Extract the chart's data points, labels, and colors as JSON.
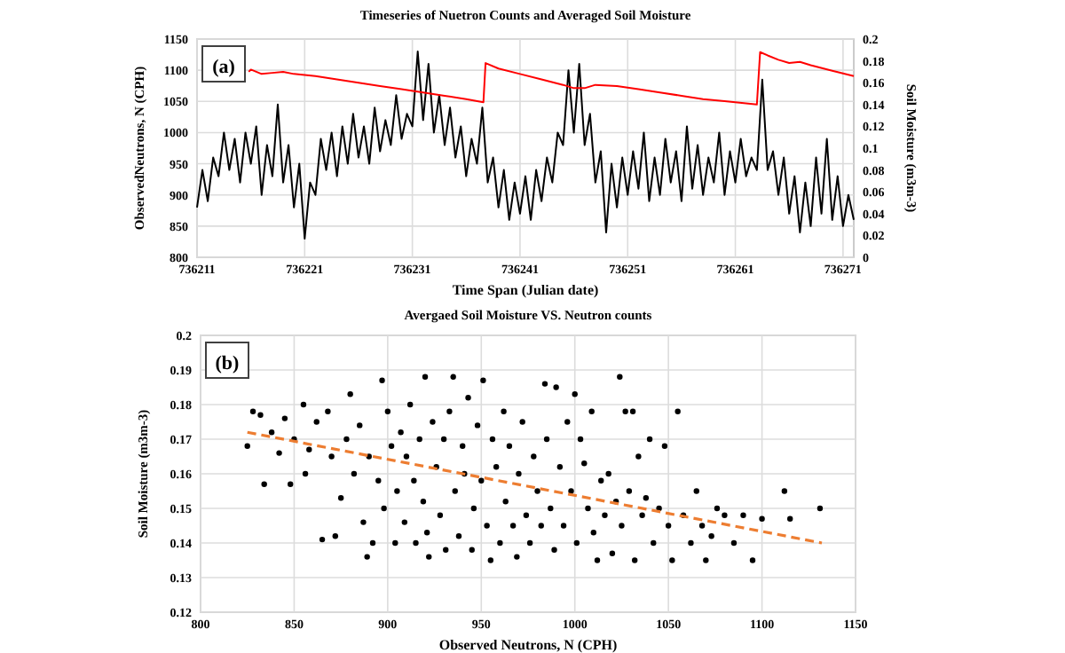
{
  "chart_data": [
    {
      "type": "line",
      "title": "Timeseries of Nuetron Counts and Averaged Soil Moisture",
      "xlabel": "Time Span (Julian date)",
      "ylabel": "ObservedNeutrons, N (CPH)",
      "y2label": "Soil Moisture (m3m-3)",
      "annotations": [
        "(a)"
      ],
      "grid": true,
      "xlim": [
        736211,
        736272
      ],
      "xticks": [
        736211,
        736221,
        736231,
        736241,
        736251,
        736261,
        736271
      ],
      "ylim": [
        800,
        1150
      ],
      "yticks": [
        800,
        850,
        900,
        950,
        1000,
        1050,
        1100,
        1150
      ],
      "y2lim": [
        0,
        0.2
      ],
      "y2ticks": [
        0,
        0.02,
        0.04,
        0.06,
        0.08,
        0.1,
        0.12,
        0.14,
        0.16,
        0.18,
        0.2
      ],
      "series": [
        {
          "color": "#000000",
          "x": [
            736211,
            736211.5,
            736212,
            736212.5,
            736213,
            736213.5,
            736214,
            736214.5,
            736215,
            736215.5,
            736216,
            736216.5,
            736217,
            736217.5,
            736218,
            736218.5,
            736219,
            736219.5,
            736220,
            736220.5,
            736221,
            736221.5,
            736222,
            736222.5,
            736223,
            736223.5,
            736224,
            736224.5,
            736225,
            736225.5,
            736226,
            736226.5,
            736227,
            736227.5,
            736228,
            736228.5,
            736229,
            736229.5,
            736230,
            736230.5,
            736231,
            736231.5,
            736232,
            736232.5,
            736233,
            736233.5,
            736234,
            736234.5,
            736235,
            736235.5,
            736236,
            736236.5,
            736237,
            736237.5,
            736238,
            736238.5,
            736239,
            736239.5,
            736240,
            736240.5,
            736241,
            736241.5,
            736242,
            736242.5,
            736243,
            736243.5,
            736244,
            736244.5,
            736245,
            736245.5,
            736246,
            736246.5,
            736247,
            736247.5,
            736248,
            736248.5,
            736249,
            736249.5,
            736250,
            736250.5,
            736251,
            736251.5,
            736252,
            736252.5,
            736253,
            736253.5,
            736254,
            736254.5,
            736255,
            736255.5,
            736256,
            736256.5,
            736257,
            736257.5,
            736258,
            736258.5,
            736259,
            736259.5,
            736260,
            736260.5,
            736261,
            736261.5,
            736262,
            736262.5,
            736263,
            736263.5,
            736264,
            736264.5,
            736265,
            736265.5,
            736266,
            736266.5,
            736267,
            736267.5,
            736268,
            736268.5,
            736269,
            736269.5,
            736270,
            736270.5,
            736271,
            736271.5,
            736272
          ],
          "values": [
            880,
            940,
            890,
            960,
            930,
            1000,
            940,
            990,
            920,
            1000,
            950,
            1010,
            900,
            980,
            930,
            1045,
            920,
            980,
            880,
            950,
            830,
            920,
            900,
            990,
            940,
            1000,
            930,
            1010,
            950,
            1030,
            960,
            1010,
            950,
            1040,
            970,
            1020,
            980,
            1060,
            990,
            1030,
            1010,
            1130,
            1020,
            1110,
            1000,
            1060,
            980,
            1040,
            960,
            1010,
            930,
            990,
            950,
            1040,
            920,
            960,
            880,
            940,
            860,
            920,
            870,
            930,
            860,
            940,
            890,
            960,
            920,
            1000,
            980,
            1100,
            1000,
            1110,
            980,
            1030,
            920,
            970,
            840,
            950,
            880,
            960,
            900,
            970,
            910,
            1000,
            890,
            960,
            900,
            990,
            920,
            970,
            890,
            1010,
            910,
            980,
            900,
            960,
            920,
            1000,
            900,
            970,
            920,
            990,
            930,
            960,
            940,
            1085,
            940,
            970,
            900,
            960,
            870,
            930,
            840,
            920,
            850,
            960,
            870,
            990,
            860,
            930,
            850,
            900,
            860
          ]
        },
        {
          "color": "#ff0000",
          "axis": "y2",
          "x": [
            736215.8,
            736216,
            736217,
            736218,
            736219,
            736220,
            736222,
            736224,
            736226,
            736228,
            736230,
            736232,
            736234,
            736236,
            736237.6,
            736237.8,
            736239,
            736241,
            736243,
            736245,
            736246,
            736247,
            736248,
            736250,
            736252,
            736254,
            736256,
            736258,
            736260,
            736262,
            736263,
            736263.3,
            736264,
            736265,
            736266,
            736267,
            736268,
            736270,
            736272
          ],
          "values": [
            0.17,
            0.172,
            0.168,
            0.169,
            0.17,
            0.168,
            0.166,
            0.163,
            0.16,
            0.157,
            0.154,
            0.151,
            0.148,
            0.145,
            0.142,
            0.178,
            0.173,
            0.168,
            0.163,
            0.158,
            0.155,
            0.155,
            0.158,
            0.157,
            0.154,
            0.151,
            0.148,
            0.145,
            0.143,
            0.141,
            0.14,
            0.188,
            0.185,
            0.181,
            0.178,
            0.179,
            0.176,
            0.171,
            0.166
          ]
        }
      ]
    },
    {
      "type": "scatter",
      "title": "Avergaed Soil Moisture VS. Neutron counts",
      "xlabel": "Observed Neutrons, N (CPH)",
      "ylabel": "Soil Moisture (m3m-3)",
      "annotations": [
        "(b)"
      ],
      "grid": true,
      "xlim": [
        800,
        1150
      ],
      "xticks": [
        800,
        850,
        900,
        950,
        1000,
        1050,
        1100,
        1150
      ],
      "ylim": [
        0.12,
        0.2
      ],
      "yticks": [
        0.12,
        0.13,
        0.14,
        0.15,
        0.16,
        0.17,
        0.18,
        0.19,
        0.2
      ],
      "series": [
        {
          "color": "#000000",
          "marker": "circle",
          "x": [
            825,
            828,
            832,
            834,
            838,
            842,
            845,
            848,
            850,
            855,
            856,
            858,
            862,
            865,
            868,
            870,
            872,
            875,
            878,
            880,
            882,
            885,
            887,
            889,
            890,
            892,
            895,
            897,
            898,
            900,
            902,
            904,
            905,
            907,
            909,
            910,
            912,
            914,
            915,
            917,
            919,
            920,
            921,
            922,
            924,
            926,
            928,
            930,
            931,
            933,
            935,
            936,
            938,
            940,
            941,
            943,
            945,
            946,
            948,
            950,
            951,
            953,
            955,
            956,
            958,
            960,
            962,
            963,
            965,
            967,
            969,
            970,
            972,
            974,
            976,
            978,
            980,
            982,
            984,
            985,
            987,
            989,
            990,
            992,
            994,
            996,
            998,
            1000,
            1001,
            1003,
            1005,
            1007,
            1009,
            1010,
            1012,
            1014,
            1016,
            1018,
            1020,
            1022,
            1024,
            1025,
            1027,
            1029,
            1031,
            1032,
            1034,
            1036,
            1038,
            1040,
            1042,
            1045,
            1048,
            1050,
            1052,
            1055,
            1058,
            1062,
            1065,
            1068,
            1070,
            1073,
            1076,
            1080,
            1085,
            1090,
            1095,
            1100,
            1112,
            1115,
            1131
          ],
          "values": [
            0.168,
            0.178,
            0.177,
            0.157,
            0.172,
            0.166,
            0.176,
            0.157,
            0.17,
            0.18,
            0.16,
            0.167,
            0.175,
            0.141,
            0.178,
            0.165,
            0.142,
            0.153,
            0.17,
            0.183,
            0.16,
            0.174,
            0.146,
            0.136,
            0.165,
            0.14,
            0.158,
            0.187,
            0.15,
            0.178,
            0.168,
            0.14,
            0.155,
            0.172,
            0.146,
            0.165,
            0.18,
            0.158,
            0.14,
            0.17,
            0.152,
            0.188,
            0.143,
            0.136,
            0.175,
            0.162,
            0.148,
            0.17,
            0.138,
            0.178,
            0.188,
            0.155,
            0.142,
            0.168,
            0.16,
            0.182,
            0.138,
            0.15,
            0.174,
            0.158,
            0.187,
            0.145,
            0.135,
            0.17,
            0.162,
            0.14,
            0.178,
            0.152,
            0.168,
            0.145,
            0.136,
            0.16,
            0.175,
            0.148,
            0.14,
            0.165,
            0.155,
            0.145,
            0.186,
            0.17,
            0.15,
            0.138,
            0.185,
            0.162,
            0.145,
            0.175,
            0.155,
            0.183,
            0.14,
            0.17,
            0.163,
            0.15,
            0.178,
            0.143,
            0.135,
            0.158,
            0.148,
            0.16,
            0.137,
            0.152,
            0.188,
            0.145,
            0.178,
            0.155,
            0.178,
            0.135,
            0.165,
            0.148,
            0.153,
            0.17,
            0.14,
            0.15,
            0.168,
            0.145,
            0.135,
            0.178,
            0.148,
            0.14,
            0.155,
            0.145,
            0.135,
            0.142,
            0.15,
            0.148,
            0.14,
            0.148,
            0.135,
            0.147,
            0.155,
            0.147,
            0.15
          ]
        },
        {
          "type": "line",
          "color": "#ed7d31",
          "line_style": "dashed",
          "x": [
            825,
            1132
          ],
          "values": [
            0.172,
            0.14
          ]
        }
      ]
    }
  ]
}
